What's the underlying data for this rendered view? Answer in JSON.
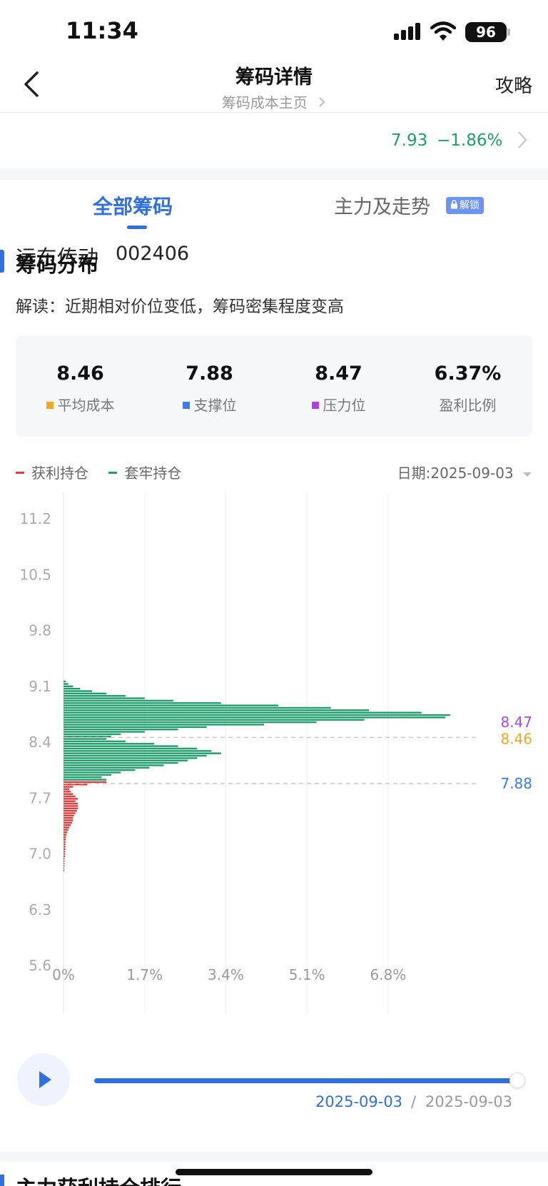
{
  "status_bar": {
    "time": "11:34",
    "battery": "96"
  },
  "nav": {
    "title": "筹码详情",
    "subtitle": "筹码成本主页",
    "right": "攻略"
  },
  "stock": {
    "name": "远东传动",
    "code": "002406",
    "price": "7.93",
    "change_pct": "−1.86%"
  },
  "tabs": [
    {
      "label": "全部筹码",
      "active": true
    },
    {
      "label": "主力及走势",
      "badge": "解锁"
    }
  ],
  "section": {
    "title": "筹码分布",
    "interpretation": "解读：近期相对价位变低，筹码密集程度变高"
  },
  "stats": [
    {
      "value": "8.46",
      "label": "平均成本",
      "color": "#f5a623"
    },
    {
      "value": "7.88",
      "label": "支撑位",
      "color": "#3a7be6"
    },
    {
      "value": "8.47",
      "label": "压力位",
      "color": "#b43be8"
    },
    {
      "value": "6.37%",
      "label": "盈利比例"
    }
  ],
  "legend": {
    "profit": "获利持仓",
    "trapped": "套牢持仓",
    "profit_color": "#e03a3a",
    "trapped_color": "#1d9e6b"
  },
  "date_selector": "日期:2025-09-03",
  "chart_data": {
    "type": "bar",
    "orientation": "horizontal",
    "ylim": [
      5.3,
      11.6
    ],
    "xlim": [
      0,
      8.5
    ],
    "y_ticks": [
      "11.2",
      "10.5",
      "9.8",
      "9.1",
      "8.4",
      "7.7",
      "7.0",
      "6.3",
      "5.6"
    ],
    "x_ticks": [
      "0%",
      "1.7%",
      "3.4%",
      "5.1%",
      "6.8%"
    ],
    "reference_lines": [
      {
        "value": 8.47,
        "label": "8.47",
        "color": "#a64be6"
      },
      {
        "value": 8.46,
        "label": "8.46",
        "color": "#f5a623"
      },
      {
        "value": 7.88,
        "label": "7.88",
        "color": "#3a7be6"
      }
    ],
    "series": [
      {
        "name": "套牢持仓",
        "color": "#1d9e6b",
        "prices": [
          9.16,
          9.13,
          9.1,
          9.07,
          9.04,
          9.01,
          8.98,
          8.95,
          8.92,
          8.89,
          8.86,
          8.83,
          8.8,
          8.77,
          8.74,
          8.71,
          8.68,
          8.65,
          8.62,
          8.59,
          8.56,
          8.53,
          8.5,
          8.47,
          8.44,
          8.41,
          8.38,
          8.35,
          8.32,
          8.29,
          8.26,
          8.23,
          8.2,
          8.17,
          8.14,
          8.11,
          8.08,
          8.05,
          8.02,
          7.99,
          7.96,
          7.93
        ],
        "values": [
          0.05,
          0.1,
          0.2,
          0.35,
          0.6,
          0.9,
          1.3,
          1.7,
          2.3,
          3.3,
          4.5,
          5.6,
          6.4,
          7.5,
          8.1,
          8.0,
          6.3,
          5.3,
          4.2,
          3.0,
          2.4,
          1.7,
          1.2,
          1.0,
          0.9,
          1.3,
          1.9,
          2.4,
          2.8,
          3.1,
          3.3,
          3.0,
          2.8,
          2.6,
          2.4,
          2.1,
          1.8,
          1.5,
          1.2,
          1.0,
          0.8,
          0.9
        ]
      },
      {
        "name": "获利持仓",
        "color": "#e03a3a",
        "prices": [
          7.9,
          7.87,
          7.84,
          7.81,
          7.78,
          7.75,
          7.72,
          7.69,
          7.66,
          7.63,
          7.6,
          7.57,
          7.54,
          7.51,
          7.48,
          7.45,
          7.42,
          7.39,
          7.36,
          7.33,
          7.3,
          7.27,
          7.24,
          7.21,
          7.18,
          7.15,
          7.12,
          7.09,
          7.06,
          7.03,
          7.0,
          6.97,
          6.94,
          6.91,
          6.88,
          6.85,
          6.82,
          6.79
        ],
        "values": [
          0.9,
          0.5,
          0.2,
          0.12,
          0.15,
          0.2,
          0.25,
          0.3,
          0.25,
          0.3,
          0.3,
          0.3,
          0.28,
          0.25,
          0.22,
          0.2,
          0.2,
          0.18,
          0.15,
          0.12,
          0.1,
          0.08,
          0.06,
          0.05,
          0.05,
          0.04,
          0.04,
          0.04,
          0.04,
          0.03,
          0.03,
          0.03,
          0.02,
          0.02,
          0.02,
          0.02,
          0.01,
          0.01
        ]
      }
    ]
  },
  "playback": {
    "current_date": "2025-09-03",
    "separator": "/",
    "end_date": "2025-09-03",
    "progress": 1.0
  },
  "next_section_title": "主力获利持仓排行"
}
